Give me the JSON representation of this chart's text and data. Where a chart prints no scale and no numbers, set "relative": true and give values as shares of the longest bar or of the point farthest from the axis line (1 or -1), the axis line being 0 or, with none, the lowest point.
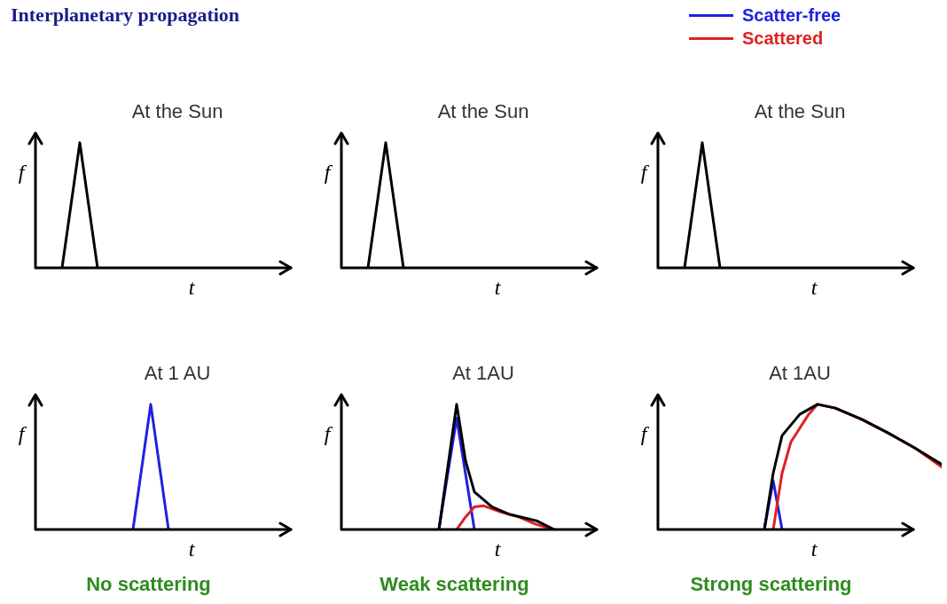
{
  "chart_data": [
    {
      "type": "line",
      "relative": true,
      "title": "At the Sun",
      "xlabel": "t",
      "ylabel": "f",
      "annotations": [
        "Interplanetary propagation"
      ],
      "categories": [
        null,
        null,
        null,
        null,
        null,
        null,
        null,
        null,
        null,
        null,
        null,
        null,
        null,
        null,
        null,
        null,
        null,
        null,
        null,
        null,
        null,
        null,
        null,
        null,
        null,
        null,
        null,
        null,
        null,
        null,
        null,
        null,
        null
      ],
      "series": [
        {
          "color": "#000000",
          "values": [
            null,
            null,
            null,
            0,
            null,
            1,
            null,
            0,
            null,
            null,
            null,
            null,
            null,
            null,
            null,
            null,
            null,
            null,
            null,
            null,
            null,
            null,
            null,
            null,
            null,
            null,
            null,
            null,
            null,
            null,
            null,
            null,
            null
          ]
        }
      ]
    },
    {
      "type": "line",
      "relative": true,
      "title": "At the Sun",
      "xlabel": "t",
      "ylabel": "f",
      "categories": [
        null,
        null,
        null,
        null,
        null,
        null,
        null,
        null,
        null,
        null,
        null,
        null,
        null,
        null,
        null,
        null,
        null,
        null,
        null,
        null,
        null,
        null,
        null,
        null,
        null,
        null,
        null,
        null,
        null,
        null,
        null,
        null,
        null
      ],
      "series": [
        {
          "color": "#000000",
          "values": [
            null,
            null,
            null,
            0,
            null,
            1,
            null,
            0,
            null,
            null,
            null,
            null,
            null,
            null,
            null,
            null,
            null,
            null,
            null,
            null,
            null,
            null,
            null,
            null,
            null,
            null,
            null,
            null,
            null,
            null,
            null,
            null,
            null
          ]
        }
      ]
    },
    {
      "type": "line",
      "relative": true,
      "title": "At the Sun",
      "xlabel": "t",
      "ylabel": "f",
      "categories": [
        null,
        null,
        null,
        null,
        null,
        null,
        null,
        null,
        null,
        null,
        null,
        null,
        null,
        null,
        null,
        null,
        null,
        null,
        null,
        null,
        null,
        null,
        null,
        null,
        null,
        null,
        null,
        null,
        null,
        null,
        null,
        null,
        null
      ],
      "series": [
        {
          "color": "#000000",
          "values": [
            null,
            null,
            null,
            0,
            null,
            1,
            null,
            0,
            null,
            null,
            null,
            null,
            null,
            null,
            null,
            null,
            null,
            null,
            null,
            null,
            null,
            null,
            null,
            null,
            null,
            null,
            null,
            null,
            null,
            null,
            null,
            null,
            null
          ]
        }
      ]
    },
    {
      "type": "line",
      "relative": true,
      "title": "At 1 AU",
      "xlabel": "t",
      "ylabel": "f",
      "annotations": [
        "No scattering"
      ],
      "categories": [
        null,
        null,
        null,
        null,
        null,
        null,
        null,
        null,
        null,
        null,
        null,
        null,
        null,
        null,
        null,
        null,
        null,
        null,
        null,
        null,
        null,
        null,
        null,
        null,
        null,
        null,
        null,
        null,
        null,
        null,
        null,
        null,
        null
      ],
      "series": [
        {
          "color": "#2020e0",
          "values": [
            null,
            null,
            null,
            null,
            null,
            null,
            null,
            null,
            null,
            null,
            null,
            0,
            null,
            1,
            null,
            0,
            null,
            null,
            null,
            null,
            null,
            null,
            null,
            null,
            null,
            null,
            null,
            null,
            null,
            null,
            null,
            null,
            null
          ]
        }
      ]
    },
    {
      "type": "line",
      "relative": true,
      "title": "At 1AU",
      "xlabel": "t",
      "ylabel": "f",
      "annotations": [
        "Weak scattering"
      ],
      "categories": [
        null,
        null,
        null,
        null,
        null,
        null,
        null,
        null,
        null,
        null,
        null,
        null,
        null,
        null,
        null,
        null,
        null,
        null,
        null,
        null,
        null,
        null,
        null,
        null,
        null,
        null,
        null,
        null,
        null,
        null,
        null,
        null,
        null
      ],
      "series": [
        {
          "color": "#2020e0",
          "values": [
            null,
            null,
            null,
            null,
            null,
            null,
            null,
            null,
            null,
            null,
            null,
            0,
            null,
            0.89,
            null,
            0,
            null,
            null,
            null,
            null,
            null,
            null,
            null,
            null,
            null,
            null,
            null,
            null,
            null,
            null,
            null,
            null,
            null
          ]
        },
        {
          "color": "#e02020",
          "values": [
            null,
            null,
            null,
            null,
            null,
            null,
            null,
            null,
            null,
            null,
            null,
            null,
            null,
            0,
            0.1,
            0.18,
            0.19,
            null,
            0.14,
            null,
            0.1,
            null,
            0.04,
            null,
            0,
            null,
            null,
            null,
            null,
            null,
            null,
            null,
            null
          ]
        },
        {
          "color": "#000000",
          "values": [
            null,
            null,
            null,
            null,
            null,
            null,
            null,
            null,
            null,
            null,
            null,
            0,
            null,
            1,
            0.55,
            0.3,
            null,
            0.18,
            null,
            0.12,
            null,
            null,
            0.07,
            null,
            0,
            null,
            null,
            null,
            null,
            null,
            null,
            null,
            null
          ]
        }
      ]
    },
    {
      "type": "line",
      "relative": true,
      "title": "At 1AU",
      "xlabel": "t",
      "ylabel": "f",
      "annotations": [
        "Strong scattering"
      ],
      "legend": "top left",
      "categories": [
        null,
        null,
        null,
        null,
        null,
        null,
        null,
        null,
        null,
        null,
        null,
        null,
        null,
        null,
        null,
        null,
        null,
        null,
        null,
        null,
        null,
        null,
        null,
        null,
        null,
        null,
        null,
        null,
        null,
        null,
        null,
        null,
        null
      ],
      "series": [
        {
          "name": "Scatter-free",
          "color": "#2020e0",
          "values": [
            null,
            null,
            null,
            null,
            null,
            null,
            null,
            null,
            null,
            null,
            null,
            null,
            0,
            0.39,
            0,
            null,
            null,
            null,
            null,
            null,
            null,
            null,
            null,
            null,
            null,
            null,
            null,
            null,
            null,
            null,
            null,
            null,
            null
          ]
        },
        {
          "name": "Scattered",
          "color": "#e02020",
          "values": [
            null,
            null,
            null,
            null,
            null,
            null,
            null,
            null,
            null,
            null,
            null,
            null,
            null,
            0,
            0.45,
            0.7,
            null,
            0.92,
            1,
            null,
            0.97,
            null,
            null,
            0.88,
            null,
            null,
            0.77,
            null,
            null,
            0.65,
            null,
            null,
            0.5
          ]
        },
        {
          "color": "#000000",
          "values": [
            null,
            null,
            null,
            null,
            null,
            null,
            null,
            null,
            null,
            null,
            null,
            null,
            0,
            0.45,
            0.75,
            null,
            0.92,
            null,
            1,
            null,
            0.97,
            null,
            null,
            0.88,
            null,
            null,
            0.77,
            null,
            null,
            0.65,
            null,
            null,
            0.52
          ]
        }
      ]
    }
  ]
}
